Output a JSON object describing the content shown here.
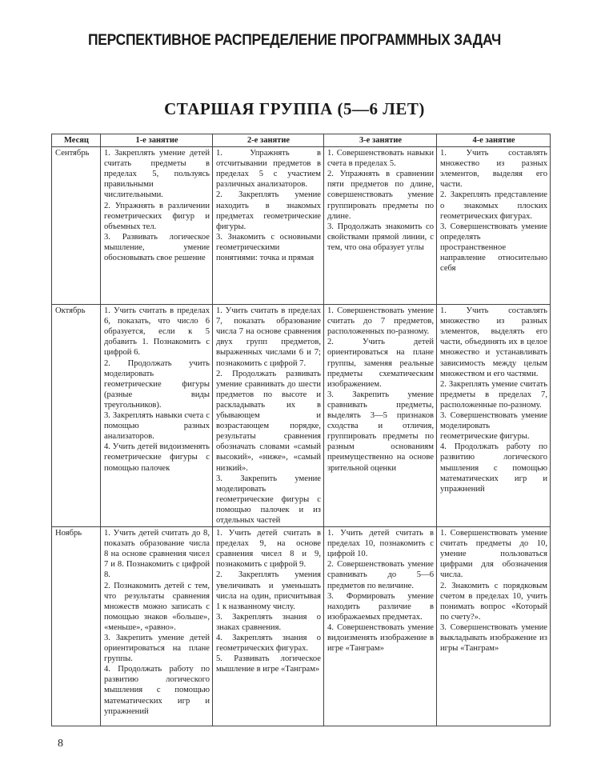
{
  "page": {
    "title": "ПЕРСПЕКТИВНОЕ РАСПРЕДЕЛЕНИЕ ПРОГРАММНЫХ ЗАДАЧ",
    "subtitle": "СТАРШАЯ ГРУППА (5—6 ЛЕТ)",
    "page_number": "8"
  },
  "table": {
    "headers": [
      "Месяц",
      "1-е занятие",
      "2-е занятие",
      "3-е занятие",
      "4-е занятие"
    ],
    "rows": [
      {
        "month": "Сентябрь",
        "cells": [
          [
            "1. Закреплять умение детей считать предметы в пределах 5, пользуясь правильными числительными.",
            "2. Упражнять в различении геометрических фигур и объемных тел.",
            "3. Развивать логическое мышление, умение обосновывать свое решение"
          ],
          [
            "1. Упражнять в отсчитывании предметов в пределах 5 с участием различных анализаторов.",
            "2. Закреплять умение находить в знакомых предметах геометрические фигуры.",
            "3. Знакомить с основными геометрическими понятиями: точка и прямая"
          ],
          [
            "1. Совершенствовать навыки счета в пределах 5.",
            "2. Упражнять в сравнении пяти предметов по длине, совершенствовать умение группировать предметы по длине.",
            "3. Продолжать знакомить со свойствами прямой линии, с тем, что она образует углы"
          ],
          [
            "1. Учить составлять множество из разных элементов, выделяя его части.",
            "2. Закреплять представление о знакомых плоских геометрических фигурах.",
            "3. Совершенствовать умение определять пространственное направление относительно себя"
          ]
        ]
      },
      {
        "month": "Октябрь",
        "cells": [
          [
            "1. Учить считать в пределах 6, показать, что число 6 образуется, если к 5 добавить 1. Познакомить с цифрой 6.",
            "2. Продолжать учить моделировать геометрические фигуры (разные виды треугольников).",
            "3. Закреплять навыки счета с помощью разных анализаторов.",
            "4. Учить детей видоизменять геометрические фигуры с помощью палочек"
          ],
          [
            "1. Учить считать в пределах 7, показать образование числа 7 на основе сравнения двух групп предметов, выраженных числами 6 и 7; познакомить с цифрой 7.",
            "2. Продолжать развивать умение сравнивать до шести предметов по высоте и раскладывать их в убывающем и возрастающем порядке, результаты сравнения обозначать словами «самый высокий», «ниже», «самый низкий».",
            "3. Закрепить умение моделировать геометрические фигуры с помощью палочек и из отдельных частей"
          ],
          [
            "1. Совершенствовать умение считать до 7 предметов, расположенных по-разному.",
            "2. Учить детей ориентироваться на плане группы, заменяя реальные предметы схематическим изображением.",
            "3. Закрепить умение сравнивать предметы, выделять 3—5 признаков сходства и отличия, группировать предметы по разным основаниям преимущественно на основе зрительной оценки"
          ],
          [
            "1. Учить составлять множество из разных элементов, выделять его части, объединять их в целое множество и устанавливать зависимость между целым множеством и его частями.",
            "2. Закреплять умение считать предметы в пределах 7, расположенные по-разному.",
            "3. Совершенствовать умение моделировать геометрические фигуры.",
            "4. Продолжать работу по развитию логического мышления с помощью математических игр и упражнений"
          ]
        ]
      },
      {
        "month": "Ноябрь",
        "cells": [
          [
            "1. Учить детей считать до 8, показать образование числа 8 на основе сравнения чисел 7 и 8. Познакомить с цифрой 8.",
            "2. Познакомить детей с тем, что результаты сравнения множеств можно записать с помощью знаков «больше», «меньше», «равно».",
            "3. Закрепить умение детей ориентироваться на плане группы.",
            "4. Продолжать работу по развитию логического мышления с помощью математических игр и упражнений"
          ],
          [
            "1. Учить детей считать в пределах 9, на основе сравнения чисел 8 и 9, познакомить с цифрой 9.",
            "2. Закреплять умения увеличивать и уменьшать числа на один, присчитывая 1 к названному числу.",
            "3. Закреплять знания о знаках сравнения.",
            "4. Закреплять знания о геометрических фигурах.",
            "5. Развивать логическое мышление в игре «Танграм»"
          ],
          [
            "1. Учить детей считать в пределах 10, познакомить с цифрой 10.",
            "2. Совершенствовать умение сравнивать до 5—6 предметов по величине.",
            "3. Формировать умение находить различие в изображаемых предметах.",
            "4. Совершенствовать умение видоизменять изображение в игре «Танграм»"
          ],
          [
            "1. Совершенствовать умение считать предметы до 10, умение пользоваться цифрами для обозначения числа.",
            "2. Знакомить с порядковым счетом в пределах 10, учить понимать вопрос «Который по счету?».",
            "3. Совершенствовать умение выкладывать изображение из игры «Танграм»"
          ]
        ]
      }
    ]
  }
}
